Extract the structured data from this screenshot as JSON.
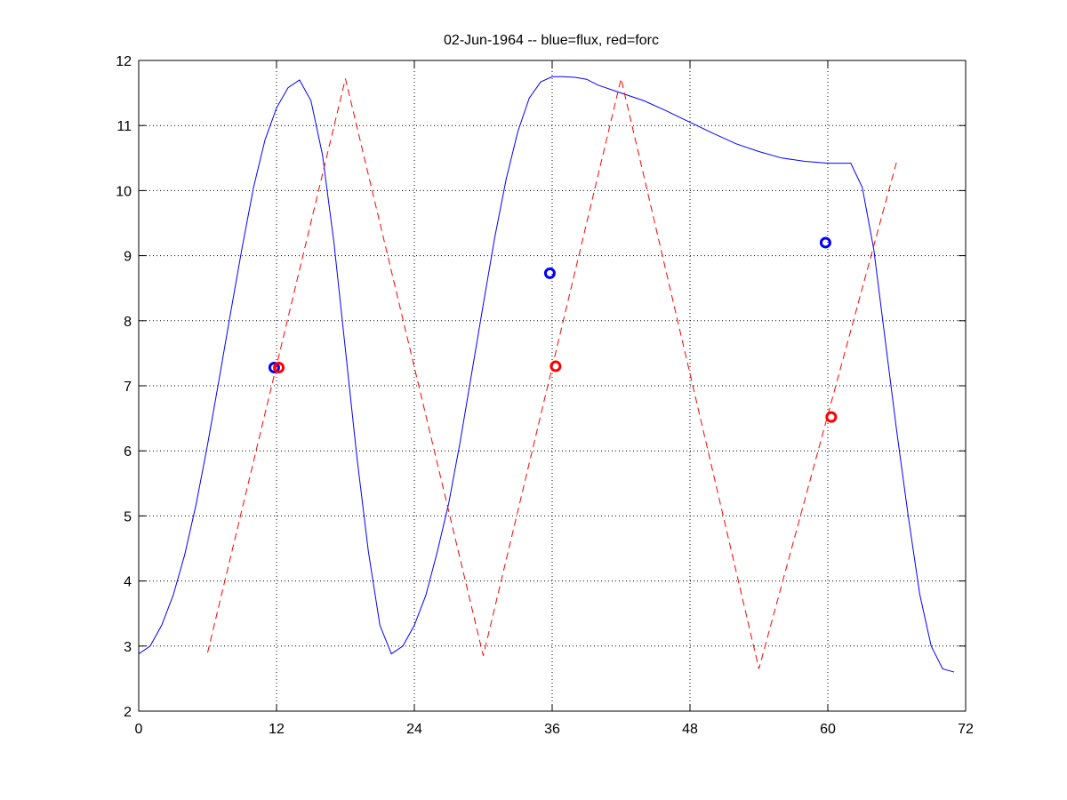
{
  "chart_data": {
    "type": "line",
    "title": "02-Jun-1964 -- blue=flux, red=forc",
    "xlabel": "",
    "ylabel": "",
    "xlim": [
      0,
      72
    ],
    "ylim": [
      2,
      12
    ],
    "xticks": [
      0,
      12,
      24,
      36,
      48,
      60,
      72
    ],
    "yticks": [
      2,
      3,
      4,
      5,
      6,
      7,
      8,
      9,
      10,
      11,
      12
    ],
    "grid": true,
    "colors": {
      "flux": "#0000ff",
      "forc": "#ff0000"
    },
    "series": [
      {
        "key": "flux",
        "style": "solid",
        "x": [
          0,
          1,
          2,
          3,
          4,
          5,
          6,
          7,
          8,
          9,
          10,
          11,
          12,
          13,
          14,
          15,
          16,
          17,
          18,
          19,
          20,
          21,
          22,
          23,
          24,
          25,
          26,
          27,
          28,
          29,
          30,
          31,
          32,
          33,
          34,
          35,
          36,
          37,
          38,
          39,
          40,
          42,
          44,
          46,
          48,
          50,
          52,
          54,
          56,
          58,
          60,
          62,
          63,
          64,
          65,
          66,
          67,
          68,
          69,
          70,
          71
        ],
        "y": [
          2.88,
          3.0,
          3.32,
          3.78,
          4.4,
          5.18,
          6.1,
          7.1,
          8.12,
          9.12,
          10.05,
          10.78,
          11.27,
          11.58,
          11.7,
          11.38,
          10.55,
          9.2,
          7.55,
          5.9,
          4.45,
          3.32,
          2.88,
          3.0,
          3.32,
          3.78,
          4.45,
          5.2,
          6.15,
          7.2,
          8.25,
          9.28,
          10.18,
          10.9,
          11.42,
          11.67,
          11.75,
          11.75,
          11.74,
          11.71,
          11.62,
          11.5,
          11.38,
          11.22,
          11.05,
          10.88,
          10.72,
          10.6,
          10.5,
          10.45,
          10.42,
          10.42,
          10.05,
          9.1,
          7.7,
          6.3,
          5.0,
          3.8,
          3.0,
          2.65,
          2.6
        ]
      },
      {
        "key": "forc",
        "style": "dashed",
        "x": [
          6,
          18,
          30,
          42,
          54,
          66
        ],
        "y": [
          2.9,
          11.72,
          2.85,
          11.72,
          2.65,
          10.45
        ]
      }
    ],
    "markers": [
      {
        "key": "flux",
        "x": [
          11.8,
          35.8,
          59.8
        ],
        "y": [
          7.28,
          8.73,
          9.2
        ]
      },
      {
        "key": "forc",
        "x": [
          12.2,
          36.3,
          60.3
        ],
        "y": [
          7.28,
          7.3,
          6.52
        ]
      }
    ]
  }
}
